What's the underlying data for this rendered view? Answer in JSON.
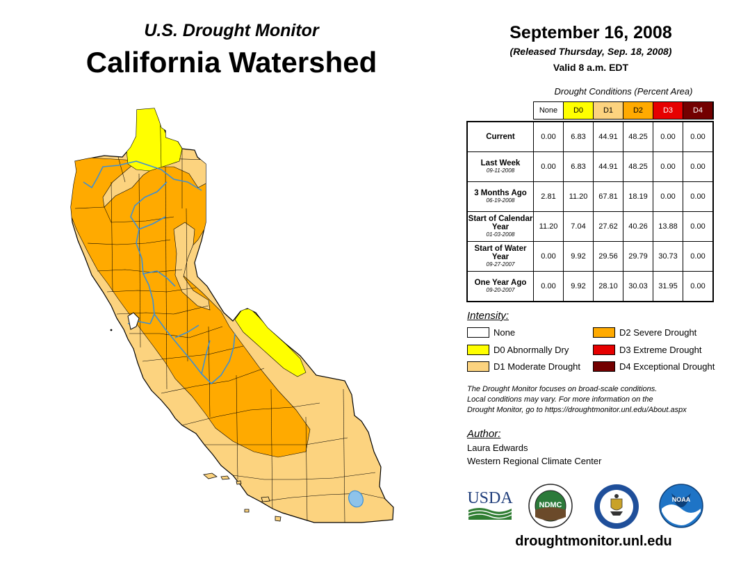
{
  "header": {
    "subtitle": "U.S. Drought Monitor",
    "title": "California Watershed",
    "date": "September 16, 2008",
    "released": "(Released Thursday, Sep. 18, 2008)",
    "valid": "Valid 8 a.m. EDT"
  },
  "table": {
    "caption": "Drought Conditions (Percent Area)",
    "columns": [
      "None",
      "D0",
      "D1",
      "D2",
      "D3",
      "D4"
    ],
    "rows": [
      {
        "label": "Current",
        "sublabel": "",
        "values": [
          "0.00",
          "6.83",
          "44.91",
          "48.25",
          "0.00",
          "0.00"
        ]
      },
      {
        "label": "Last Week",
        "sublabel": "09-11-2008",
        "values": [
          "0.00",
          "6.83",
          "44.91",
          "48.25",
          "0.00",
          "0.00"
        ]
      },
      {
        "label": "3 Months Ago",
        "sublabel": "06-19-2008",
        "values": [
          "2.81",
          "11.20",
          "67.81",
          "18.19",
          "0.00",
          "0.00"
        ]
      },
      {
        "label": "Start of Calendar Year",
        "sublabel": "01-03-2008",
        "values": [
          "11.20",
          "7.04",
          "27.62",
          "40.26",
          "13.88",
          "0.00"
        ]
      },
      {
        "label": "Start of Water Year",
        "sublabel": "09-27-2007",
        "values": [
          "0.00",
          "9.92",
          "29.56",
          "29.79",
          "30.73",
          "0.00"
        ]
      },
      {
        "label": "One Year Ago",
        "sublabel": "09-20-2007",
        "values": [
          "0.00",
          "9.92",
          "28.10",
          "30.03",
          "31.95",
          "0.00"
        ]
      }
    ]
  },
  "legend": {
    "heading": "Intensity:",
    "items": [
      {
        "label": "None",
        "color": "#ffffff"
      },
      {
        "label": "D0 Abnormally Dry",
        "color": "#ffff00"
      },
      {
        "label": "D1 Moderate Drought",
        "color": "#fcd37f"
      },
      {
        "label": "D2 Severe Drought",
        "color": "#ffaa00"
      },
      {
        "label": "D3 Extreme Drought",
        "color": "#e60000"
      },
      {
        "label": "D4 Exceptional Drought",
        "color": "#730000"
      }
    ]
  },
  "note": {
    "line1": "The Drought Monitor focuses on broad-scale conditions.",
    "line2": "Local conditions may vary. For more information on the",
    "line3": "Drought Monitor, go to https://droughtmonitor.unl.edu/About.aspx"
  },
  "author": {
    "heading": "Author:",
    "name": "Laura Edwards",
    "org": "Western Regional Climate Center"
  },
  "logos": {
    "usda": "USDA",
    "ndmc": "NDMC",
    "noaa": "NOAA"
  },
  "footer": {
    "url": "droughtmonitor.unl.edu"
  },
  "colors": {
    "d1": "#fcd37f",
    "d2": "#ffaa00",
    "d0": "#ffff00",
    "rivers": "#3b8fd6",
    "lake": "#8ec3ea"
  }
}
